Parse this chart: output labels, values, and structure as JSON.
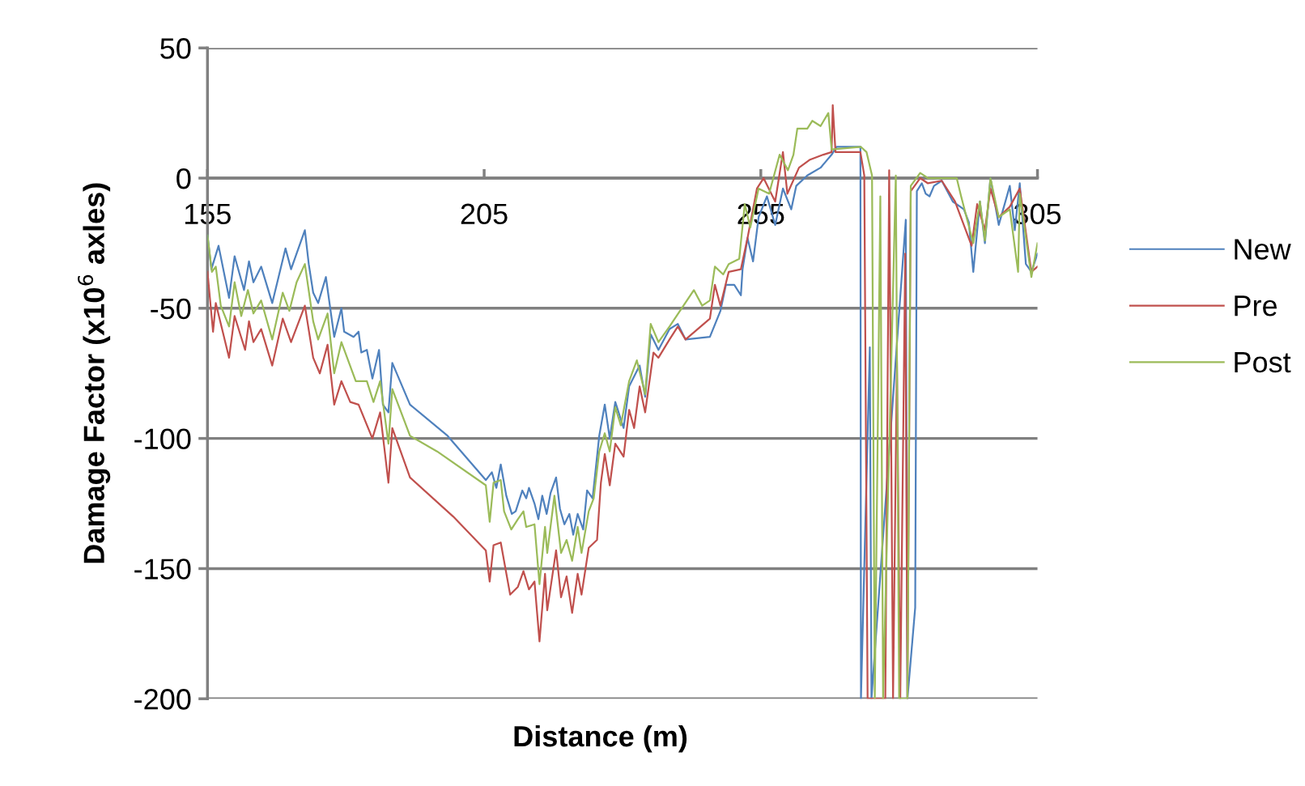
{
  "chart_data": {
    "type": "line",
    "xlabel": "Distance (m)",
    "ylabel": "Damage Factor (x10$^{6}$ axles)",
    "xlim": [
      155,
      305
    ],
    "xticks": [
      155,
      205,
      255,
      305
    ],
    "ylim": [
      -200,
      50
    ],
    "yticks": [
      -200,
      -150,
      -100,
      -50,
      0,
      50
    ],
    "grid": "y",
    "legend": "right",
    "marker": "none",
    "line_style": "solid",
    "series": [
      {
        "name": "New",
        "color": "#4f81bd",
        "x": [
          155,
          155.7,
          157,
          158.9,
          159.9,
          161.6,
          162.5,
          163.3,
          164.7,
          166.7,
          169.1,
          170.1,
          172.6,
          173.3,
          174.1,
          175,
          176.4,
          177.9,
          179.2,
          179.7,
          181.4,
          182.3,
          182.8,
          183.8,
          184.8,
          186,
          186.7,
          187.7,
          188.4,
          191.6,
          198.4,
          205.3,
          206.4,
          207.2,
          208,
          209,
          210,
          210.7,
          211.9,
          212.6,
          213.1,
          214.1,
          214.8,
          215.5,
          216.3,
          217,
          218,
          218.7,
          219.5,
          220.4,
          221.1,
          221.9,
          222.9,
          223.6,
          224.6,
          225.8,
          226.8,
          227.7,
          228.7,
          230.2,
          231.2,
          233.1,
          234.1,
          235.1,
          236.5,
          238.5,
          240,
          241.4,
          245.8,
          247.7,
          248.7,
          250.2,
          251.4,
          251.7,
          252.6,
          253.6,
          254.6,
          256.1,
          257.6,
          259,
          260.5,
          261.4,
          263.4,
          265.8,
          267.8,
          268.7,
          273,
          273.1,
          274.7,
          275.0,
          281.2,
          281.5,
          282.9,
          283.2,
          284.1,
          284.8,
          285.5,
          286.3,
          287.7,
          289.7,
          291.7,
          292.6,
          293.4,
          294.6,
          295.5,
          296.5,
          298,
          300,
          300.9,
          301.8,
          302.9,
          303.9,
          305
        ],
        "values": [
          -22,
          -35,
          -26,
          -46,
          -30,
          -43,
          -32,
          -40,
          -34,
          -48,
          -27,
          -35,
          -20,
          -33,
          -44,
          -48,
          -38,
          -61,
          -50,
          -59,
          -61,
          -59,
          -67,
          -66,
          -77,
          -66,
          -87,
          -90,
          -71,
          -87,
          -99,
          -116,
          -113,
          -119,
          -110,
          -122,
          -129,
          -128,
          -120,
          -123,
          -119,
          -125,
          -131,
          -122,
          -129,
          -121,
          -115,
          -127,
          -133,
          -129,
          -137,
          -129,
          -135,
          -120,
          -123,
          -99,
          -87,
          -100,
          -86,
          -96,
          -80,
          -72,
          -84,
          -60,
          -66,
          -58,
          -56,
          -62,
          -61,
          -51,
          -41,
          -41,
          -45,
          -35,
          -23,
          -32,
          -15,
          -7,
          -18,
          -4,
          -12,
          -3,
          1,
          4,
          9,
          12,
          12,
          -200,
          -65,
          -200,
          -16,
          -200,
          -165,
          -5,
          -2,
          -6,
          -7,
          -3,
          -1,
          -9,
          -12,
          -17,
          -36,
          -9,
          -25,
          0,
          -18,
          -3,
          -20,
          -2,
          -33,
          -36,
          -29
        ]
      },
      {
        "name": "Pre",
        "color": "#c0504d",
        "x": [
          155,
          156,
          156.5,
          158.9,
          159.9,
          161.8,
          162.5,
          163.3,
          164.7,
          166.7,
          168.6,
          170.1,
          172.6,
          174.1,
          175.3,
          176.7,
          177.9,
          179.2,
          180.8,
          182.3,
          184.8,
          186.2,
          187.7,
          188.4,
          191.6,
          199.4,
          205.3,
          206,
          206.7,
          208,
          209.7,
          211.1,
          212.1,
          213.1,
          214.1,
          215,
          216,
          216.4,
          218,
          218.9,
          219.9,
          220.9,
          221.9,
          222.6,
          223.9,
          225.4,
          226.1,
          226.8,
          227.7,
          228.7,
          230.2,
          231.2,
          232.1,
          233.1,
          234.1,
          235.6,
          236.5,
          238.5,
          240,
          241.4,
          245.8,
          246.7,
          247.7,
          249.2,
          251.4,
          252.6,
          254.3,
          255.5,
          257.6,
          259,
          259.8,
          261.9,
          263.8,
          266.3,
          267.8,
          268,
          268.5,
          273,
          273.7,
          274.3,
          277.5,
          278.2,
          278.9,
          279.6,
          280.2,
          281.1,
          281.5,
          282.1,
          283.8,
          285.2,
          287.7,
          290.1,
          293.1,
          294.1,
          295.5,
          296.5,
          298,
          300,
          301.8,
          303.9,
          305
        ],
        "values": [
          -36,
          -59,
          -48,
          -69,
          -53,
          -66,
          -55,
          -63,
          -58,
          -72,
          -54,
          -63,
          -49,
          -69,
          -75,
          -64,
          -87,
          -78,
          -86,
          -87,
          -100,
          -90,
          -117,
          -96,
          -115,
          -130,
          -143,
          -155,
          -141,
          -140,
          -160,
          -157,
          -151,
          -158,
          -155,
          -178,
          -152,
          -166,
          -143,
          -161,
          -153,
          -167,
          -152,
          -160,
          -142,
          -139,
          -117,
          -106,
          -118,
          -102,
          -107,
          -89,
          -96,
          -80,
          -90,
          -67,
          -69,
          -62,
          -57,
          -62,
          -54,
          -41,
          -49,
          -36,
          -35,
          -23,
          -4,
          0,
          -9,
          10,
          -6,
          4,
          7,
          9,
          10,
          28,
          10,
          10,
          1,
          -200,
          -200,
          3,
          -200,
          -70,
          -200,
          -29,
          -200,
          -5,
          0,
          -2,
          -1,
          -9,
          -26,
          -10,
          -20,
          -4,
          -15,
          -11,
          -4,
          -36,
          -34
        ]
      },
      {
        "name": "Post",
        "color": "#9bbb59",
        "x": [
          155,
          155.8,
          156.5,
          157.4,
          158.9,
          159.9,
          161.1,
          162.3,
          163.3,
          164.7,
          166.7,
          168.6,
          169.8,
          171.1,
          172.6,
          174.1,
          175,
          176.7,
          177.9,
          179.2,
          181.8,
          183.8,
          185,
          186.2,
          187.7,
          188.4,
          191.6,
          196.5,
          205.3,
          206,
          206.7,
          208,
          208.6,
          209.9,
          211.1,
          212.1,
          212.6,
          214.1,
          215,
          216,
          216.4,
          217.7,
          218.9,
          219.9,
          220.9,
          221.9,
          222.6,
          223.9,
          224.8,
          225.8,
          226.8,
          227.7,
          228.7,
          229.7,
          231.2,
          232.6,
          234.1,
          235.1,
          236.5,
          238.5,
          242.9,
          244.4,
          245.8,
          246.7,
          248.2,
          249.2,
          251.1,
          252.1,
          253.1,
          254.6,
          256.5,
          258.4,
          259.9,
          260.9,
          261.6,
          263.4,
          264.3,
          265.8,
          267.2,
          267.8,
          273.1,
          274.1,
          275.1,
          275.6,
          276.6,
          277.1,
          279.4,
          280,
          281.5,
          282.1,
          283.8,
          285.2,
          287.7,
          290.4,
          291.2,
          293.4,
          294.6,
          295.5,
          296.5,
          298,
          300,
          301.5,
          301.8,
          303.9,
          305
        ],
        "values": [
          -22,
          -36,
          -34,
          -49,
          -57,
          -40,
          -53,
          -43,
          -52,
          -47,
          -62,
          -44,
          -51,
          -40,
          -33,
          -55,
          -62,
          -52,
          -75,
          -63,
          -78,
          -78,
          -86,
          -78,
          -102,
          -81,
          -99,
          -105,
          -118,
          -132,
          -117,
          -116,
          -128,
          -135,
          -131,
          -128,
          -134,
          -133,
          -156,
          -134,
          -144,
          -122,
          -144,
          -139,
          -147,
          -134,
          -144,
          -128,
          -123,
          -105,
          -98,
          -105,
          -88,
          -95,
          -78,
          -70,
          -83,
          -56,
          -63,
          -57,
          -43,
          -49,
          -47,
          -34,
          -37,
          -33,
          -31,
          -10,
          -19,
          -4,
          -6,
          9,
          3,
          9,
          19,
          19,
          22,
          20,
          25,
          11,
          12,
          10,
          1,
          -200,
          -7,
          -200,
          1,
          -200,
          -200,
          -3,
          2,
          0,
          0,
          0,
          -7,
          -25,
          -9,
          -24,
          0,
          -15,
          -12,
          -36,
          -6,
          -38,
          -25
        ]
      }
    ]
  }
}
